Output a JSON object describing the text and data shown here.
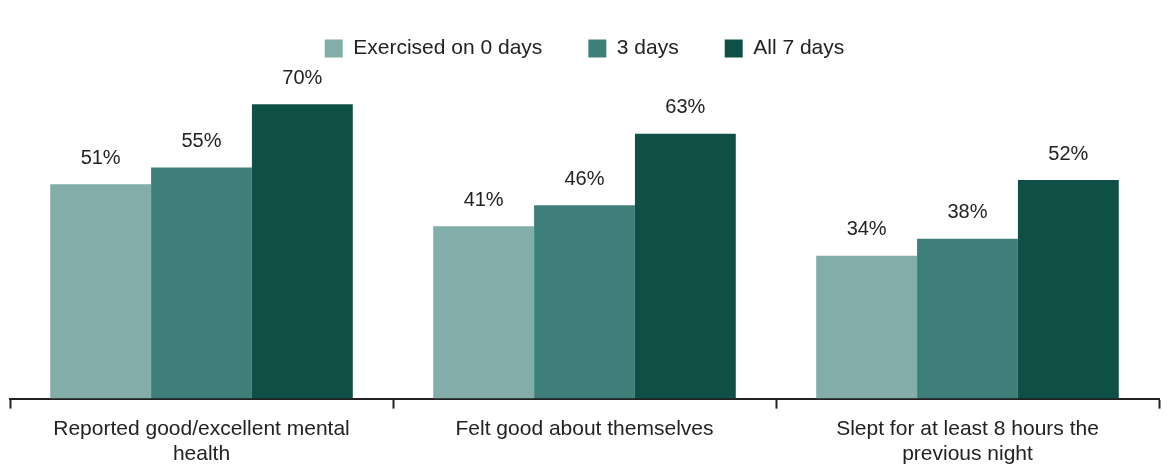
{
  "chart_data": {
    "type": "bar",
    "categories": [
      "Reported good/excellent mental health",
      "Felt good about themselves",
      "Slept for at least 8 hours the previous night"
    ],
    "series": [
      {
        "name": "Exercised on 0 days",
        "color": "#82ada8",
        "values": [
          51,
          41,
          34
        ],
        "value_labels": [
          "51%",
          "41%",
          "34%"
        ]
      },
      {
        "name": "3 days",
        "color": "#3e8079",
        "values": [
          55,
          46,
          38
        ],
        "value_labels": [
          "55%",
          "46%",
          "38%"
        ]
      },
      {
        "name": "All 7 days",
        "color": "#0e4f46",
        "values": [
          70,
          63,
          52
        ],
        "value_labels": [
          "70%",
          "63%",
          "52%"
        ]
      }
    ],
    "grid": false,
    "legend": "top"
  }
}
